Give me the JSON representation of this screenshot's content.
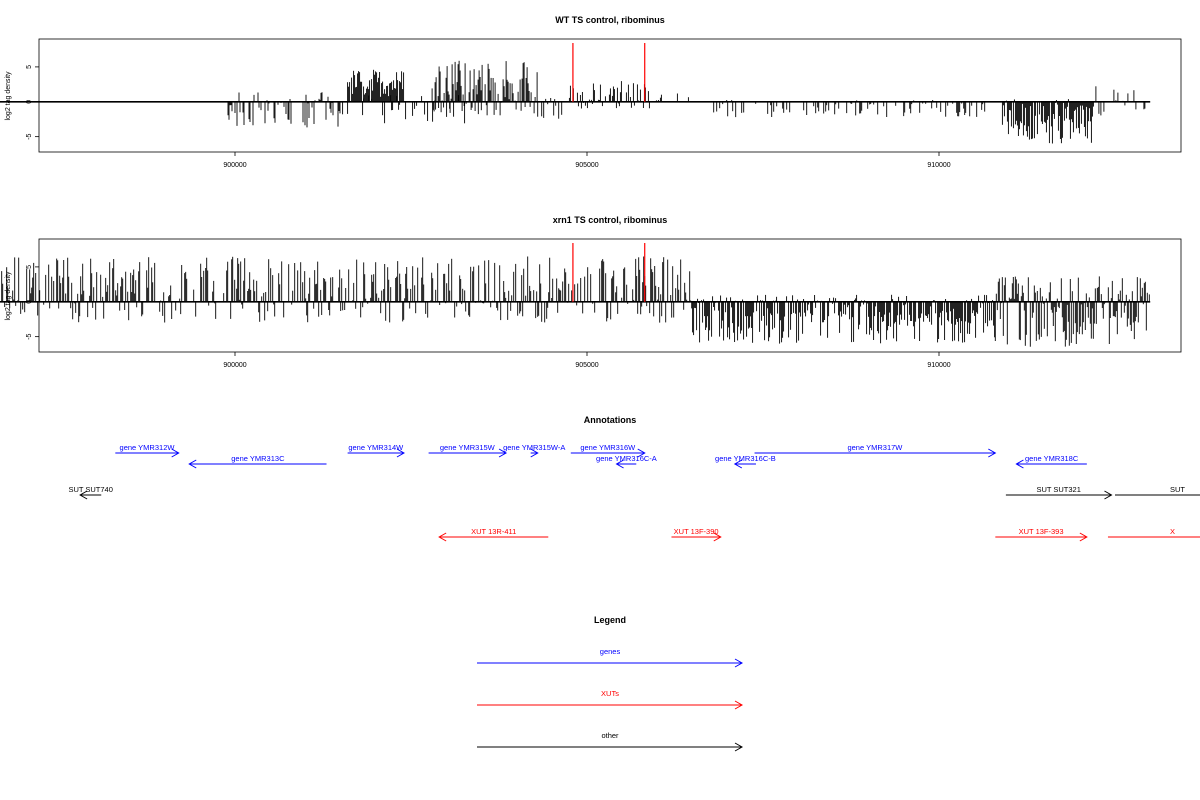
{
  "colors": {
    "genes": "#0000ff",
    "xuts": "#ff0000",
    "other": "#000000",
    "marker": "#ff0000",
    "bars": "#000000"
  },
  "chart_data": [
    {
      "type": "bar",
      "title": "WT TS control, ribominus",
      "ylabel": "log2 tag density",
      "xlim": [
        887600,
        913400
      ],
      "ylim": [
        -7.2,
        9.0
      ],
      "yticks": [
        -5,
        0,
        5
      ],
      "ytick_labels": [
        "-5",
        "0",
        "5"
      ],
      "xticks": [
        900000,
        905000,
        910000
      ],
      "xtick_labels": [
        "900000",
        "905000",
        "910000"
      ],
      "marker_lines": [
        904800,
        905820
      ],
      "density_segments": [
        {
          "start": 888500,
          "end": 889300,
          "lo": -1.5,
          "hi": 3.0,
          "density": 0.35
        },
        {
          "start": 889300,
          "end": 890100,
          "lo": -2.0,
          "hi": 1.0,
          "density": 0.3
        },
        {
          "start": 899900,
          "end": 901500,
          "lo": -3.7,
          "hi": 1.5,
          "density": 0.55
        },
        {
          "start": 901500,
          "end": 903300,
          "lo": -3.2,
          "hi": 1.0,
          "density": 0.3
        },
        {
          "start": 903300,
          "end": 903600,
          "lo": -1.8,
          "hi": 0.5,
          "density": 0.2
        },
        {
          "start": 901600,
          "end": 902400,
          "lo": 0,
          "hi": 4.7,
          "density": 0.9
        },
        {
          "start": 902800,
          "end": 904300,
          "lo": -2.0,
          "hi": 6.0,
          "density": 0.8
        },
        {
          "start": 904300,
          "end": 904700,
          "lo": -2.5,
          "hi": 0.8,
          "density": 0.3
        },
        {
          "start": 904750,
          "end": 905900,
          "lo": -1.0,
          "hi": 3.2,
          "density": 0.55
        },
        {
          "start": 905900,
          "end": 906500,
          "lo": -0.5,
          "hi": 1.2,
          "density": 0.2
        },
        {
          "start": 906800,
          "end": 910700,
          "lo": -2.2,
          "hi": 0.3,
          "density": 0.3
        },
        {
          "start": 910900,
          "end": 912200,
          "lo": -6.0,
          "hi": 0.4,
          "density": 0.95
        },
        {
          "start": 912200,
          "end": 913000,
          "lo": -2.0,
          "hi": 2.6,
          "density": 0.25
        }
      ]
    },
    {
      "type": "bar",
      "title": "xrn1 TS control, ribominus",
      "ylabel": "log2 tag density",
      "xlim": [
        887600,
        913400
      ],
      "ylim": [
        -7.2,
        9.0
      ],
      "yticks": [
        -5,
        0,
        5
      ],
      "ytick_labels": [
        "-5",
        "0",
        "5"
      ],
      "xticks": [
        900000,
        905000,
        910000
      ],
      "xtick_labels": [
        "900000",
        "905000",
        "910000"
      ],
      "marker_lines": [
        904800,
        905820
      ],
      "density_segments": [
        {
          "start": 888400,
          "end": 889300,
          "lo": -1.6,
          "hi": 3.0,
          "density": 0.5
        },
        {
          "start": 889300,
          "end": 891400,
          "lo": -6.5,
          "hi": 2.0,
          "density": 0.9
        },
        {
          "start": 891400,
          "end": 892800,
          "lo": -3.0,
          "hi": 6.5,
          "density": 0.95
        },
        {
          "start": 892800,
          "end": 894200,
          "lo": -2.5,
          "hi": 8.5,
          "density": 0.9
        },
        {
          "start": 894200,
          "end": 906500,
          "lo": -3.0,
          "hi": 6.5,
          "density": 0.6
        },
        {
          "start": 906500,
          "end": 910800,
          "lo": -6.0,
          "hi": 1.0,
          "density": 0.9
        },
        {
          "start": 910800,
          "end": 913000,
          "lo": -6.5,
          "hi": 3.8,
          "density": 0.95
        }
      ]
    }
  ],
  "annotations": {
    "title": "Annotations",
    "features": [
      {
        "label": "gene YMR312W",
        "type": "gene",
        "start": 898300,
        "end": 899200,
        "strand": "+",
        "row": 0
      },
      {
        "label": "gene YMR313C",
        "type": "gene",
        "start": 899350,
        "end": 901300,
        "strand": "-",
        "row": 1
      },
      {
        "label": "gene YMR314W",
        "type": "gene",
        "start": 901600,
        "end": 902400,
        "strand": "+",
        "row": 0
      },
      {
        "label": "gene YMR315W",
        "type": "gene",
        "start": 902750,
        "end": 903850,
        "strand": "+",
        "row": 0
      },
      {
        "label": "gene YMR315W-A",
        "type": "gene",
        "start": 904200,
        "end": 904300,
        "strand": "+",
        "row": 0
      },
      {
        "label": "gene YMR316W",
        "type": "gene",
        "start": 904770,
        "end": 905820,
        "strand": "+",
        "row": 0
      },
      {
        "label": "gene YMR316C-A",
        "type": "gene",
        "start": 905420,
        "end": 905700,
        "strand": "-",
        "row": 1
      },
      {
        "label": "gene YMR316C-B",
        "type": "gene",
        "start": 907100,
        "end": 907400,
        "strand": "-",
        "row": 1
      },
      {
        "label": "gene YMR317W",
        "type": "gene",
        "start": 907380,
        "end": 910800,
        "strand": "+",
        "row": 0
      },
      {
        "label": "gene YMR318C",
        "type": "gene",
        "start": 911100,
        "end": 912100,
        "strand": "-",
        "row": 1
      },
      {
        "label": "SUT SUT740",
        "type": "other",
        "start": 897800,
        "end": 898100,
        "strand": "-",
        "row": 2
      },
      {
        "label": "SUT SUT321",
        "type": "other",
        "start": 910950,
        "end": 912450,
        "strand": "+",
        "row": 2
      },
      {
        "label": "SUT",
        "type": "other",
        "start": 912500,
        "end": 914800,
        "strand": "+",
        "row": 2
      },
      {
        "label": "XUT 13R-411",
        "type": "xut",
        "start": 902900,
        "end": 904450,
        "strand": "-",
        "row": 3
      },
      {
        "label": "XUT 13F-390",
        "type": "xut",
        "start": 906200,
        "end": 906900,
        "strand": "+",
        "row": 3
      },
      {
        "label": "XUT 13F-393",
        "type": "xut",
        "start": 910800,
        "end": 912100,
        "strand": "+",
        "row": 3
      },
      {
        "label": "X",
        "type": "xut",
        "start": 912400,
        "end": 914800,
        "strand": "+",
        "row": 3
      }
    ]
  },
  "legend": {
    "title": "Legend",
    "items": [
      {
        "label": "genes",
        "type": "gene"
      },
      {
        "label": "XUTs",
        "type": "xut"
      },
      {
        "label": "other",
        "type": "other"
      }
    ]
  }
}
